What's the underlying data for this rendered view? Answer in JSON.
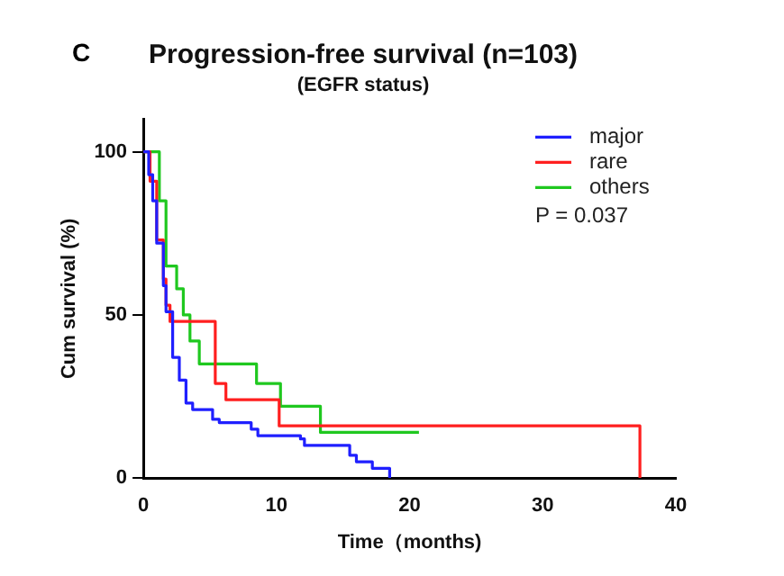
{
  "chart_data": {
    "type": "step",
    "title": "Progression-free survival (n=103)",
    "subtitle": "(EGFR status)",
    "xlabel": "Time（months)",
    "ylabel": "Cum survival (%)",
    "annotations": [
      "C",
      "P = 0.037"
    ],
    "series": [
      {
        "name": "major",
        "color": "#1f1fff",
        "x": [
          0,
          0.4,
          0.7,
          1.0,
          1.5,
          1.7,
          2.2,
          2.7,
          3.2,
          3.7,
          5.2,
          5.7,
          8.1,
          8.6,
          11.8,
          12.1,
          15.5,
          16.0,
          17.2,
          18.5
        ],
        "values": [
          100,
          93,
          85,
          72,
          59,
          51,
          37,
          30,
          23,
          21,
          18,
          17,
          15,
          13,
          12,
          10,
          7,
          5,
          3,
          0
        ]
      },
      {
        "name": "rare",
        "color": "#ff1f1f",
        "x": [
          0,
          0.5,
          1.0,
          1.5,
          1.7,
          2.0,
          5.4,
          6.2,
          10.2,
          37.3
        ],
        "values": [
          100,
          91,
          73,
          61,
          53,
          48,
          29,
          24,
          16,
          0
        ]
      },
      {
        "name": "others",
        "color": "#1fc81f",
        "x": [
          0,
          1.2,
          1.7,
          2.5,
          3.0,
          3.5,
          4.2,
          8.5,
          10.3,
          13.3,
          20.7
        ],
        "values": [
          100,
          85,
          65,
          58,
          50,
          42,
          35,
          29,
          22,
          14,
          14
        ]
      }
    ],
    "xlim": [
      0,
      40
    ],
    "xticks": [
      0,
      10,
      20,
      30,
      40
    ],
    "ylim": [
      0,
      110
    ],
    "yticks": [
      0,
      50,
      100
    ],
    "grid": false,
    "legend": "top right",
    "marker": "none",
    "line_style": "solid"
  }
}
